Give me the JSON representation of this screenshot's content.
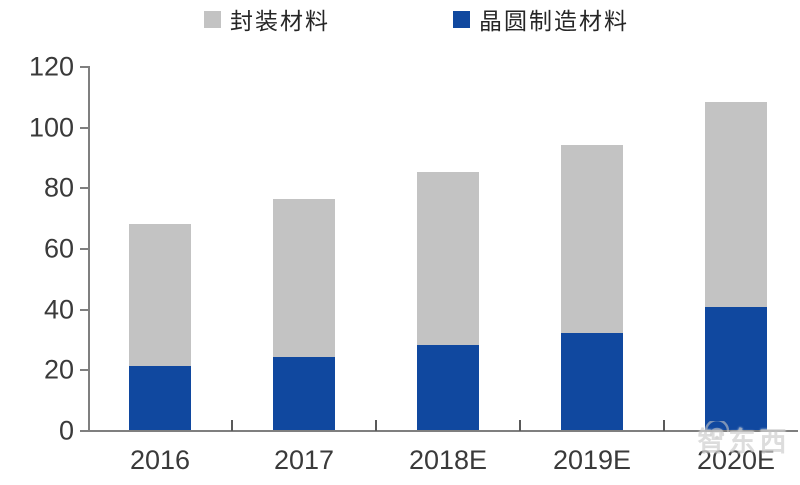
{
  "chart": {
    "legend": [
      {
        "label": "封装材料",
        "color": "#c3c3c3"
      },
      {
        "label": "晶圆制造材料",
        "color": "#10489f"
      }
    ],
    "watermark_text": "智东西"
  },
  "chart_data": {
    "type": "bar",
    "stacked": true,
    "title": "",
    "xlabel": "",
    "ylabel": "",
    "categories": [
      "2016",
      "2017",
      "2018E",
      "2019E",
      "2020E"
    ],
    "series": [
      {
        "name": "晶圆制造材料",
        "color": "#10489f",
        "values": [
          21,
          24,
          28,
          32,
          40.5
        ]
      },
      {
        "name": "封装材料",
        "color": "#c3c3c3",
        "values": [
          47,
          52,
          57,
          62,
          67.5
        ]
      }
    ],
    "totals": [
      68,
      76,
      85,
      94,
      108
    ],
    "ylim": [
      0,
      120
    ],
    "y_ticks": [
      0,
      20,
      40,
      60,
      80,
      100,
      120
    ],
    "grid": false,
    "legend_position": "top",
    "axis_color": "#7f7f7f",
    "tick_color": "#595959",
    "label_color": "#3a3a3a"
  }
}
